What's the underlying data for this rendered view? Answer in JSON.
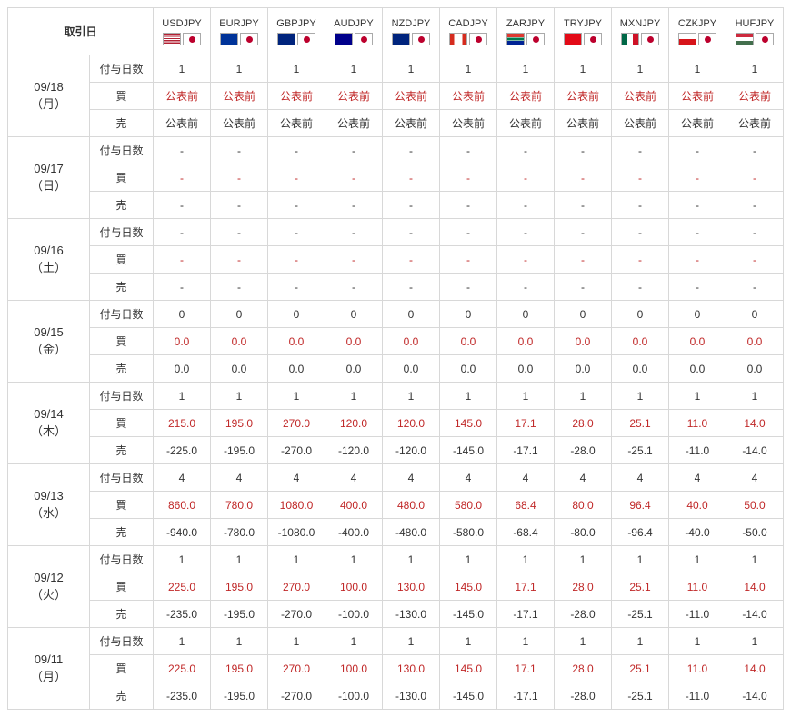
{
  "header_date_label": "取引日",
  "pairs": [
    {
      "code": "USDJPY",
      "flag_css": "background:linear-gradient(#b22234 0 10%,#fff 10% 20%,#b22234 20% 30%,#fff 30% 40%,#b22234 40% 50%,#fff 50% 60%,#b22234 60% 70%,#fff 70% 80%,#b22234 80% 90%,#fff 90%);position:relative;"
    },
    {
      "code": "EURJPY",
      "flag_css": "background:#003399;position:relative;"
    },
    {
      "code": "GBPJPY",
      "flag_css": "background:#00247d;position:relative;"
    },
    {
      "code": "AUDJPY",
      "flag_css": "background:#00008b;position:relative;"
    },
    {
      "code": "NZDJPY",
      "flag_css": "background:#00247d;position:relative;"
    },
    {
      "code": "CADJPY",
      "flag_css": "background:linear-gradient(90deg,#d52b1e 0 25%,#fff 25% 75%,#d52b1e 75%);position:relative;"
    },
    {
      "code": "ZARJPY",
      "flag_css": "background:linear-gradient(#de3831 0 33%,#fff 33% 38%,#007a4d 38% 62%,#fff 62% 67%,#002395 67%);position:relative;"
    },
    {
      "code": "TRYJPY",
      "flag_css": "background:#e30a17;position:relative;"
    },
    {
      "code": "MXNJPY",
      "flag_css": "background:linear-gradient(90deg,#006847 0 33%,#fff 33% 67%,#ce1126 67%);position:relative;"
    },
    {
      "code": "CZKJPY",
      "flag_css": "background:linear-gradient(#fff 0 50%,#d7141a 50%);position:relative;"
    },
    {
      "code": "HUFJPY",
      "flag_css": "background:linear-gradient(#cd2a3e 0 33%,#fff 33% 67%,#436f4d 67%);position:relative;"
    }
  ],
  "row_labels": {
    "days": "付与日数",
    "buy": "買",
    "sell": "売"
  },
  "groups": [
    {
      "date": "09/18",
      "dow": "（月）",
      "days": [
        "1",
        "1",
        "1",
        "1",
        "1",
        "1",
        "1",
        "1",
        "1",
        "1",
        "1"
      ],
      "buy": [
        "公表前",
        "公表前",
        "公表前",
        "公表前",
        "公表前",
        "公表前",
        "公表前",
        "公表前",
        "公表前",
        "公表前",
        "公表前"
      ],
      "sell": [
        "公表前",
        "公表前",
        "公表前",
        "公表前",
        "公表前",
        "公表前",
        "公表前",
        "公表前",
        "公表前",
        "公表前",
        "公表前"
      ]
    },
    {
      "date": "09/17",
      "dow": "（日）",
      "days": [
        "-",
        "-",
        "-",
        "-",
        "-",
        "-",
        "-",
        "-",
        "-",
        "-",
        "-"
      ],
      "buy": [
        "-",
        "-",
        "-",
        "-",
        "-",
        "-",
        "-",
        "-",
        "-",
        "-",
        "-"
      ],
      "sell": [
        "-",
        "-",
        "-",
        "-",
        "-",
        "-",
        "-",
        "-",
        "-",
        "-",
        "-"
      ]
    },
    {
      "date": "09/16",
      "dow": "（土）",
      "days": [
        "-",
        "-",
        "-",
        "-",
        "-",
        "-",
        "-",
        "-",
        "-",
        "-",
        "-"
      ],
      "buy": [
        "-",
        "-",
        "-",
        "-",
        "-",
        "-",
        "-",
        "-",
        "-",
        "-",
        "-"
      ],
      "sell": [
        "-",
        "-",
        "-",
        "-",
        "-",
        "-",
        "-",
        "-",
        "-",
        "-",
        "-"
      ]
    },
    {
      "date": "09/15",
      "dow": "（金）",
      "days": [
        "0",
        "0",
        "0",
        "0",
        "0",
        "0",
        "0",
        "0",
        "0",
        "0",
        "0"
      ],
      "buy": [
        "0.0",
        "0.0",
        "0.0",
        "0.0",
        "0.0",
        "0.0",
        "0.0",
        "0.0",
        "0.0",
        "0.0",
        "0.0"
      ],
      "sell": [
        "0.0",
        "0.0",
        "0.0",
        "0.0",
        "0.0",
        "0.0",
        "0.0",
        "0.0",
        "0.0",
        "0.0",
        "0.0"
      ]
    },
    {
      "date": "09/14",
      "dow": "（木）",
      "days": [
        "1",
        "1",
        "1",
        "1",
        "1",
        "1",
        "1",
        "1",
        "1",
        "1",
        "1"
      ],
      "buy": [
        "215.0",
        "195.0",
        "270.0",
        "120.0",
        "120.0",
        "145.0",
        "17.1",
        "28.0",
        "25.1",
        "11.0",
        "14.0"
      ],
      "sell": [
        "-225.0",
        "-195.0",
        "-270.0",
        "-120.0",
        "-120.0",
        "-145.0",
        "-17.1",
        "-28.0",
        "-25.1",
        "-11.0",
        "-14.0"
      ]
    },
    {
      "date": "09/13",
      "dow": "（水）",
      "days": [
        "4",
        "4",
        "4",
        "4",
        "4",
        "4",
        "4",
        "4",
        "4",
        "4",
        "4"
      ],
      "buy": [
        "860.0",
        "780.0",
        "1080.0",
        "400.0",
        "480.0",
        "580.0",
        "68.4",
        "80.0",
        "96.4",
        "40.0",
        "50.0"
      ],
      "sell": [
        "-940.0",
        "-780.0",
        "-1080.0",
        "-400.0",
        "-480.0",
        "-580.0",
        "-68.4",
        "-80.0",
        "-96.4",
        "-40.0",
        "-50.0"
      ]
    },
    {
      "date": "09/12",
      "dow": "（火）",
      "days": [
        "1",
        "1",
        "1",
        "1",
        "1",
        "1",
        "1",
        "1",
        "1",
        "1",
        "1"
      ],
      "buy": [
        "225.0",
        "195.0",
        "270.0",
        "100.0",
        "130.0",
        "145.0",
        "17.1",
        "28.0",
        "25.1",
        "11.0",
        "14.0"
      ],
      "sell": [
        "-235.0",
        "-195.0",
        "-270.0",
        "-100.0",
        "-130.0",
        "-145.0",
        "-17.1",
        "-28.0",
        "-25.1",
        "-11.0",
        "-14.0"
      ]
    },
    {
      "date": "09/11",
      "dow": "（月）",
      "days": [
        "1",
        "1",
        "1",
        "1",
        "1",
        "1",
        "1",
        "1",
        "1",
        "1",
        "1"
      ],
      "buy": [
        "225.0",
        "195.0",
        "270.0",
        "100.0",
        "130.0",
        "145.0",
        "17.1",
        "28.0",
        "25.1",
        "11.0",
        "14.0"
      ],
      "sell": [
        "-235.0",
        "-195.0",
        "-270.0",
        "-100.0",
        "-130.0",
        "-145.0",
        "-17.1",
        "-28.0",
        "-25.1",
        "-11.0",
        "-14.0"
      ]
    }
  ],
  "colors": {
    "buy_text": "#c02828",
    "normal_text": "#333333",
    "border": "#d8d8d8"
  }
}
